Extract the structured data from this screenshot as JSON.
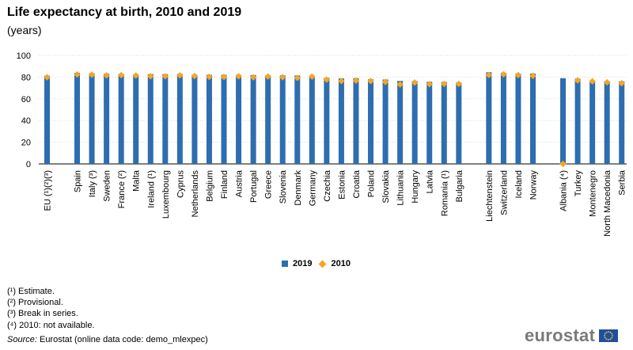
{
  "chart_data": {
    "type": "bar",
    "title": "Life expectancy at birth, 2010 and 2019",
    "subtitle": "(years)",
    "ylim": [
      0,
      100
    ],
    "yticks": [
      0,
      20,
      40,
      60,
      80,
      100
    ],
    "groups": [
      [
        "EU (¹)(²)(³)"
      ],
      [
        "Spain",
        "Italy (³)",
        "Sweden",
        "France (²)",
        "Malta",
        "Ireland (¹)",
        "Luxembourg",
        "Cyprus",
        "Netherlands",
        "Belgium",
        "Finland",
        "Austria",
        "Portugal",
        "Greece",
        "Slovenia",
        "Denmark",
        "Germany",
        "Czechia",
        "Estonia",
        "Croatia",
        "Poland",
        "Slovakia",
        "Lithuania",
        "Hungary",
        "Latvia",
        "Romania (¹)",
        "Bulgaria"
      ],
      [
        "Liechtenstein",
        "Switzerland",
        "Iceland",
        "Norway"
      ],
      [
        "Albania (⁴)",
        "Turkey",
        "Montenegro",
        "North Macedonia",
        "Serbia"
      ]
    ],
    "series": [
      {
        "name": "2019",
        "type": "bar",
        "color": "#2d6db0",
        "values": [
          81.3,
          84.0,
          83.6,
          83.2,
          82.9,
          82.6,
          82.8,
          82.7,
          82.9,
          82.2,
          82.1,
          82.1,
          82.0,
          81.9,
          81.7,
          81.6,
          81.5,
          81.3,
          79.3,
          78.8,
          79.0,
          78.0,
          77.8,
          76.5,
          76.4,
          75.7,
          75.6,
          75.1,
          84.5,
          84.0,
          83.2,
          83.3,
          79.0,
          78.6,
          76.8,
          76.3,
          76.1
        ]
      },
      {
        "name": "2010",
        "type": "marker",
        "color": "#f5a623",
        "values": [
          79.9,
          82.4,
          82.2,
          81.6,
          81.8,
          81.5,
          80.8,
          80.8,
          81.6,
          81.0,
          80.3,
          80.2,
          80.8,
          79.8,
          80.6,
          79.9,
          79.3,
          80.5,
          77.7,
          76.4,
          76.8,
          76.4,
          75.6,
          73.3,
          75.0,
          73.5,
          73.8,
          73.8,
          82.0,
          82.6,
          81.9,
          81.2,
          null,
          77.0,
          76.1,
          75.2,
          74.4
        ]
      }
    ],
    "legend": [
      "2019",
      "2010"
    ],
    "legend_position": "bottom-center"
  },
  "footnotes": [
    "(¹) Estimate.",
    "(²) Provisional.",
    "(³) Break in series.",
    "(⁴) 2010: not available."
  ],
  "source": {
    "label": "Source:",
    "text": " Eurostat (online data code: demo_mlexpec)"
  },
  "brand": "eurostat",
  "colors": {
    "bar": "#2d6db0",
    "marker": "#f5a623",
    "grid": "#d9d9d9"
  }
}
